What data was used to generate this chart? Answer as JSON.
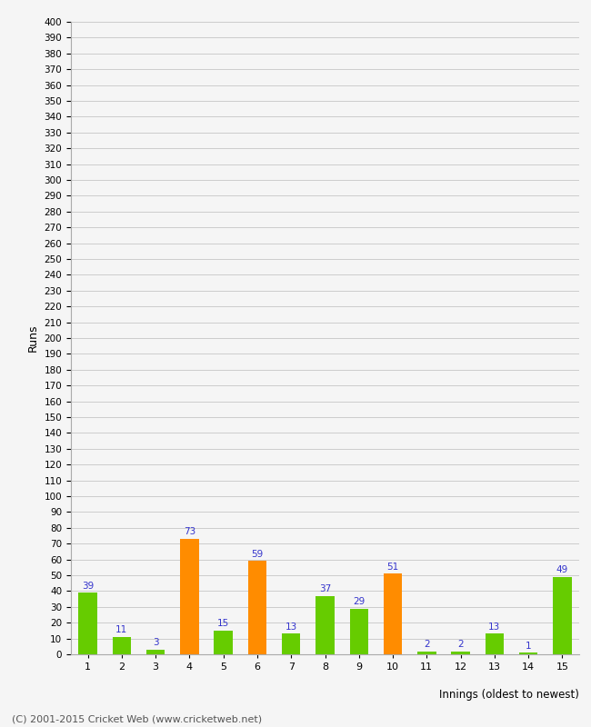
{
  "innings": [
    1,
    2,
    3,
    4,
    5,
    6,
    7,
    8,
    9,
    10,
    11,
    12,
    13,
    14,
    15
  ],
  "values": [
    39,
    11,
    3,
    73,
    15,
    59,
    13,
    37,
    29,
    51,
    2,
    2,
    13,
    1,
    49
  ],
  "colors": [
    "#66cc00",
    "#66cc00",
    "#66cc00",
    "#ff8c00",
    "#66cc00",
    "#ff8c00",
    "#66cc00",
    "#66cc00",
    "#66cc00",
    "#ff8c00",
    "#66cc00",
    "#66cc00",
    "#66cc00",
    "#66cc00",
    "#66cc00"
  ],
  "ylabel": "Runs",
  "xlabel": "Innings (oldest to newest)",
  "ylim": [
    0,
    400
  ],
  "ytick_step": 10,
  "label_color": "#3333cc",
  "background_color": "#f5f5f5",
  "plot_bg_color": "#f5f5f5",
  "grid_color": "#cccccc",
  "footer": "(C) 2001-2015 Cricket Web (www.cricketweb.net)",
  "bar_width": 0.55
}
